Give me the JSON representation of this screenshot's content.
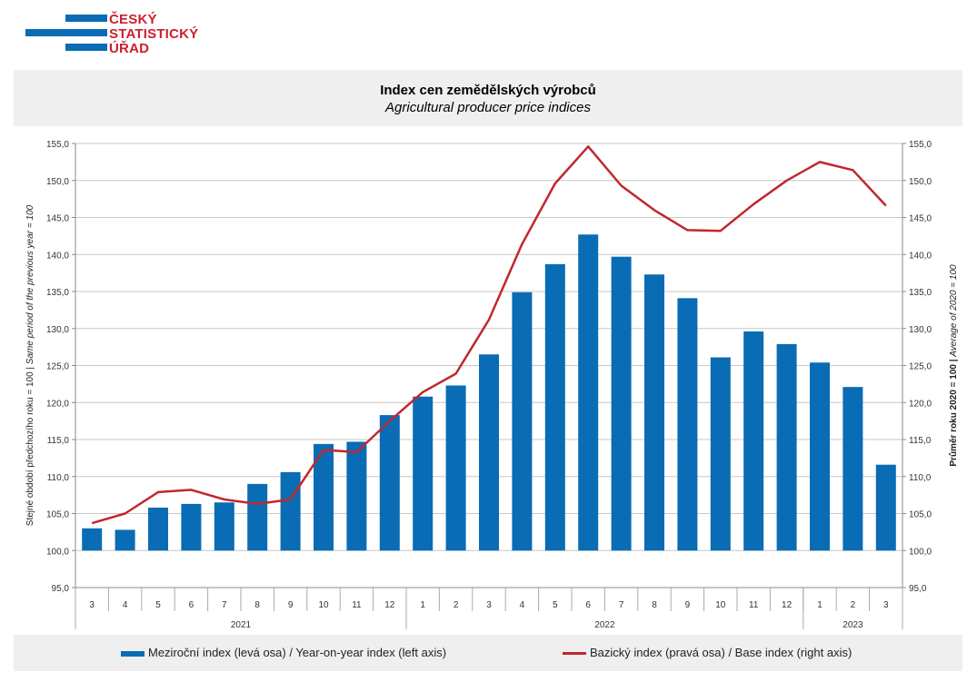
{
  "logo": {
    "lines": [
      "ČESKÝ",
      "STATISTICKÝ",
      "ÚŘAD"
    ],
    "bar_color": "#0a6cb4",
    "text_color": "#cc1f2d"
  },
  "header": {
    "title_cz": "Index cen zemědělských výrobců",
    "title_en": "Agricultural producer price indices"
  },
  "legend": {
    "bars_label": "Meziroční index (levá osa) / Year-on-year index (left axis)",
    "line_label": "Bazický index (pravá osa) / Base index (right axis)"
  },
  "chart_data": {
    "type": "bar",
    "title": "Index cen zemědělských výrobců",
    "subtitle": "Agricultural producer price indices",
    "ylabel_left_cz": "Stejné období předchozího roku = 100 | ",
    "ylabel_left_en": "Same period of  the previous year = 100",
    "ylabel_right_cz": "Průměr roku 2020 = 100 | ",
    "ylabel_right_en": "Average of 2020 = 100",
    "ylim": [
      95,
      155
    ],
    "y_ticks": [
      "95,0",
      "100,0",
      "105,0",
      "110,0",
      "115,0",
      "120,0",
      "125,0",
      "130,0",
      "135,0",
      "140,0",
      "145,0",
      "150,0",
      "155,0"
    ],
    "grid": true,
    "legend_position": "bottom",
    "categories": [
      "3",
      "4",
      "5",
      "6",
      "7",
      "8",
      "9",
      "10",
      "11",
      "12",
      "1",
      "2",
      "3",
      "4",
      "5",
      "6",
      "7",
      "8",
      "9",
      "10",
      "11",
      "12",
      "1",
      "2",
      "3"
    ],
    "years": [
      {
        "label": "2021",
        "count": 10
      },
      {
        "label": "2022",
        "count": 12
      },
      {
        "label": "2023",
        "count": 3
      }
    ],
    "series": [
      {
        "name": "Meziroční index (levá osa) / Year-on-year index (left axis)",
        "type": "bar",
        "axis": "left",
        "color": "#0a6cb4",
        "values": [
          103.0,
          102.8,
          105.8,
          106.3,
          106.5,
          109.0,
          110.6,
          114.4,
          114.7,
          118.3,
          120.8,
          122.3,
          126.5,
          134.9,
          138.7,
          142.7,
          139.7,
          137.3,
          134.1,
          126.1,
          129.6,
          127.9,
          125.4,
          122.1,
          111.6
        ]
      },
      {
        "name": "Bazický index (pravá osa) / Base index (right axis)",
        "type": "line",
        "axis": "right",
        "color": "#c1272d",
        "values": [
          103.7,
          105.0,
          107.9,
          108.2,
          106.9,
          106.3,
          106.9,
          113.6,
          113.3,
          117.5,
          121.4,
          123.9,
          131.2,
          141.4,
          149.6,
          154.6,
          149.3,
          146.0,
          143.3,
          143.2,
          146.8,
          150.0,
          152.5,
          151.4,
          146.6
        ]
      }
    ]
  }
}
